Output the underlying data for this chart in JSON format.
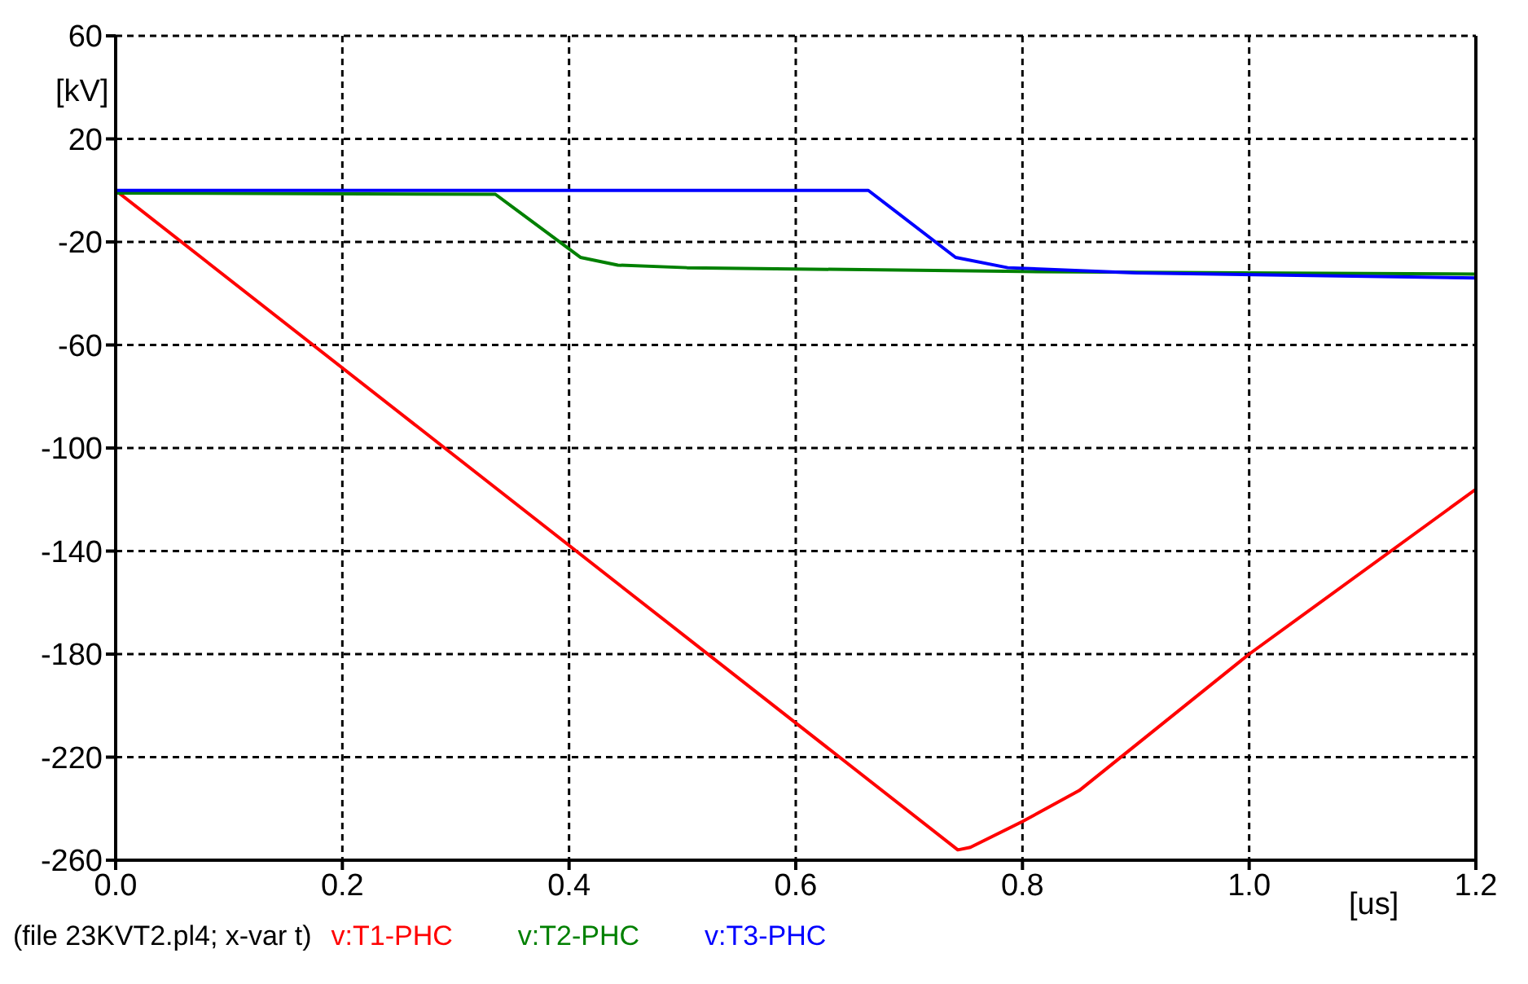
{
  "chart_data": {
    "type": "line",
    "xlabel": "[us]",
    "ylabel": "[kV]",
    "annotations": [
      "(file 23KVT2.pl4; x-var t)"
    ],
    "xlim": [
      0,
      1.2
    ],
    "xticks": [
      {
        "value": 0,
        "label": "0.0"
      },
      0.2,
      0.4,
      0.6,
      0.8,
      {
        "value": 1,
        "label": "1.0"
      },
      1.2
    ],
    "ylim": [
      -260,
      60
    ],
    "yticks": [
      60,
      20,
      -20,
      -60,
      -100,
      -140,
      -180,
      -220,
      -260
    ],
    "grid": true,
    "legend": "bottom left",
    "marker": "none",
    "line_style": "solid",
    "series": [
      {
        "name": "v:T1-PHC",
        "color": "#ff0000",
        "x": [
          0,
          0.743,
          0.754,
          0.8,
          0.85,
          1.0,
          1.2
        ],
        "values": [
          0,
          -256,
          -255,
          -245,
          -233,
          -180,
          -116
        ]
      },
      {
        "name": "v:T2-PHC",
        "color": "#008000",
        "x": [
          0,
          0.335,
          0.41,
          0.443,
          0.504,
          0.8,
          1.2
        ],
        "values": [
          -1,
          -1.5,
          -26,
          -29,
          -30,
          -31.5,
          -32.5
        ]
      },
      {
        "name": "v:T3-PHC",
        "color": "#0000ff",
        "x": [
          0,
          0.664,
          0.741,
          0.787,
          0.9,
          1.2
        ],
        "values": [
          0,
          0,
          -26,
          -30,
          -32,
          -34
        ]
      }
    ]
  }
}
